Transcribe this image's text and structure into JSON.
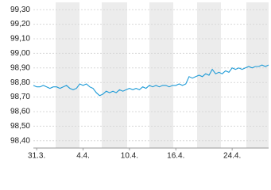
{
  "chart_data": {
    "type": "line",
    "x": [
      0,
      1,
      2,
      3,
      4,
      5,
      6,
      7,
      8,
      9,
      10,
      11,
      12,
      13,
      14,
      15,
      16,
      17,
      18,
      19,
      20,
      21,
      22,
      23,
      24,
      25,
      26,
      27,
      28,
      29,
      30,
      31,
      32,
      33,
      34,
      35,
      36,
      37,
      38,
      39,
      40,
      41,
      42,
      43,
      44,
      45,
      46,
      47,
      48,
      49,
      50,
      51,
      52,
      53,
      54,
      55,
      56,
      57,
      58,
      59,
      60,
      61,
      62,
      63,
      64,
      65,
      66,
      67,
      68,
      69,
      70,
      71
    ],
    "series": [
      {
        "color": "#1e9bd7",
        "values": [
          98.78,
          98.77,
          98.77,
          98.78,
          98.77,
          98.76,
          98.77,
          98.77,
          98.76,
          98.77,
          98.78,
          98.76,
          98.75,
          98.76,
          98.79,
          98.78,
          98.79,
          98.77,
          98.76,
          98.73,
          98.71,
          98.72,
          98.74,
          98.73,
          98.74,
          98.73,
          98.75,
          98.74,
          98.75,
          98.76,
          98.75,
          98.76,
          98.75,
          98.77,
          98.76,
          98.78,
          98.77,
          98.78,
          98.77,
          98.78,
          98.78,
          98.77,
          98.78,
          98.78,
          98.79,
          98.78,
          98.79,
          98.84,
          98.83,
          98.84,
          98.85,
          98.84,
          98.86,
          98.85,
          98.89,
          98.86,
          98.87,
          98.86,
          98.88,
          98.87,
          98.9,
          98.89,
          98.9,
          98.89,
          98.9,
          98.91,
          98.9,
          98.91,
          98.91,
          98.92,
          98.91,
          98.92
        ]
      }
    ],
    "xlim": [
      0,
      71
    ],
    "xticks": [
      {
        "value": 1,
        "label": "31.3."
      },
      {
        "value": 15,
        "label": "4.4."
      },
      {
        "value": 29,
        "label": "10.4."
      },
      {
        "value": 43,
        "label": "16.4."
      },
      {
        "value": 60,
        "label": "24.4."
      }
    ],
    "ylim": [
      98.35,
      99.35
    ],
    "yticks": [
      {
        "value": 98.4,
        "label": "98,40"
      },
      {
        "value": 98.5,
        "label": "98,50"
      },
      {
        "value": 98.6,
        "label": "98,60"
      },
      {
        "value": 98.7,
        "label": "98,70"
      },
      {
        "value": 98.8,
        "label": "98,80"
      },
      {
        "value": 98.9,
        "label": "98,90"
      },
      {
        "value": 99.0,
        "label": "99,00"
      },
      {
        "value": 99.1,
        "label": "99,10"
      },
      {
        "value": 99.2,
        "label": "99,20"
      },
      {
        "value": 99.3,
        "label": "99,30"
      }
    ],
    "grid": true
  }
}
